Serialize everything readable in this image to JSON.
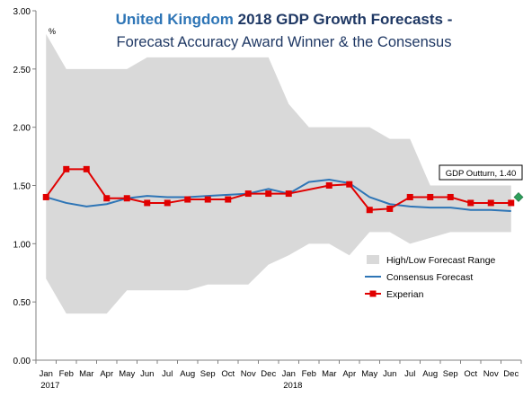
{
  "chart_data": {
    "type": "line",
    "title": {
      "country": "United Kingdom",
      "rest": "2018 GDP Growth Forecasts -"
    },
    "subtitle": "Forecast Accuracy Award Winner & the Consensus",
    "ylabel": "%",
    "ylim": [
      0,
      3.0
    ],
    "yticks": [
      "0.00",
      "0.50",
      "1.00",
      "1.50",
      "2.00",
      "2.50",
      "3.00"
    ],
    "grid": false,
    "categories": [
      "Jan",
      "Feb",
      "Mar",
      "Apr",
      "May",
      "Jun",
      "Jul",
      "Aug",
      "Sep",
      "Oct",
      "Nov",
      "Dec",
      "Jan",
      "Feb",
      "Mar",
      "Apr",
      "May",
      "Jun",
      "Jul",
      "Aug",
      "Sep",
      "Oct",
      "Nov",
      "Dec"
    ],
    "year_labels": [
      {
        "index": 0,
        "label": "2017"
      },
      {
        "index": 12,
        "label": "2018"
      }
    ],
    "range": {
      "name": "High/Low Forecast Range",
      "high": [
        2.8,
        2.5,
        2.5,
        2.5,
        2.5,
        2.6,
        2.6,
        2.6,
        2.6,
        2.6,
        2.6,
        2.6,
        2.2,
        2.0,
        2.0,
        2.0,
        2.0,
        1.9,
        1.9,
        1.5,
        1.5,
        1.5,
        1.5,
        1.5
      ],
      "low": [
        0.7,
        0.4,
        0.4,
        0.4,
        0.6,
        0.6,
        0.6,
        0.6,
        0.65,
        0.65,
        0.65,
        0.82,
        0.9,
        1.0,
        1.0,
        0.9,
        1.1,
        1.1,
        1.0,
        1.05,
        1.1,
        1.1,
        1.1,
        1.1
      ],
      "color": "#d9d9d9"
    },
    "series": [
      {
        "name": "Consensus Forecast",
        "color": "#2e75b6",
        "marker": "none",
        "values": [
          1.4,
          1.35,
          1.32,
          1.34,
          1.39,
          1.41,
          1.4,
          1.4,
          1.41,
          1.42,
          1.43,
          1.47,
          1.43,
          1.53,
          1.55,
          1.52,
          1.4,
          1.34,
          1.32,
          1.31,
          1.31,
          1.29,
          1.29,
          1.28
        ]
      },
      {
        "name": "Experian",
        "color": "#e00000",
        "marker": "square",
        "values": [
          1.4,
          1.64,
          1.64,
          1.39,
          1.39,
          1.35,
          1.35,
          1.38,
          1.38,
          1.38,
          1.43,
          1.43,
          1.43,
          null,
          1.5,
          1.51,
          1.29,
          1.3,
          1.4,
          1.4,
          1.4,
          1.35,
          1.35,
          1.35
        ]
      }
    ],
    "outturn": {
      "label": "GDP Outturn, 1.40",
      "value": 1.4,
      "color": "#2e9e5b"
    },
    "legend_position": "bottom-right"
  }
}
